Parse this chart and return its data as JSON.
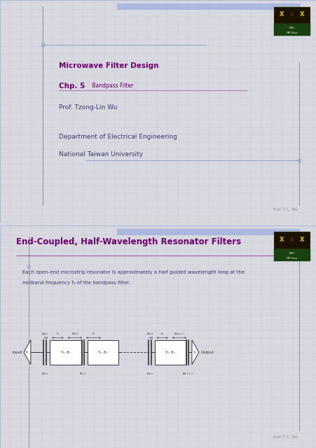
{
  "fig_w": 4.52,
  "fig_h": 6.4,
  "dpi": 100,
  "bg_color": "#d8d8e0",
  "slide_bg": "#f8f8fc",
  "grid_color": "#c5cadf",
  "grid_step": 0.033,
  "accent_bar_color": "#aab8e0",
  "accent_line_color": "#8899cc",
  "slide_border": "#b0b8d0",
  "slide1": {
    "title1": "Microwave Filter Design",
    "title2_bold": "Chp. 5",
    "title2_rest": " Bandpass Filter",
    "author": "Prof. Tzong-Lin Wu",
    "dept": "Department of Electrical Engineering",
    "univ": "National Taiwan University",
    "footer": "Prof. T. L. Wu",
    "title_color": "#6b006b",
    "text_color": "#3a3a6a",
    "footer_color": "#888888"
  },
  "slide2": {
    "title": "End-Coupled, Half-Wavelength Resonator Filters",
    "body1": "Each open-end microstrip resonator is approximately a half guided wavelength long at the",
    "body2": "midband frequency f₀ of the bandpass filter.",
    "footer": "Prof. T. L. Wu",
    "title_color": "#6b006b",
    "text_color": "#3a3a6a",
    "footer_color": "#888888"
  },
  "logo": {
    "top_bg": "#1a1200",
    "x_color": "#e8c000",
    "green_bg": "#1a4010",
    "ntu_color": "#ffffff"
  },
  "circuit": {
    "line_color": "#333333",
    "box_bg": "#ffffff",
    "text_color": "#222222"
  }
}
